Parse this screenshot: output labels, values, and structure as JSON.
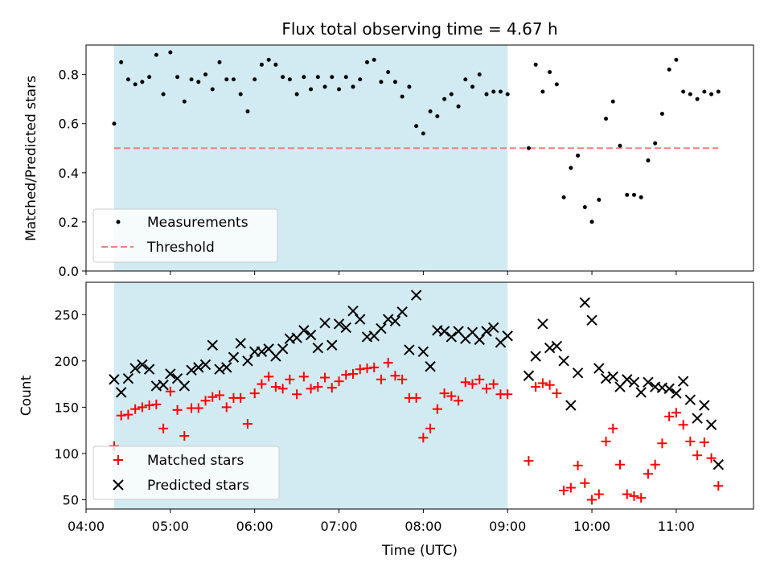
{
  "figure": {
    "title": "Flux total observing time = 4.67 h",
    "background": "#ffffff"
  },
  "chart_data": [
    {
      "type": "scatter",
      "panel": "top",
      "title": "Flux total observing time = 4.67 h",
      "xlabel": "",
      "ylabel": "Matched/Predicted stars",
      "x_unit": "hours UTC",
      "xlim": [
        "04:00",
        "11:55"
      ],
      "ylim": [
        0,
        0.92
      ],
      "yticks": [
        0.0,
        0.2,
        0.4,
        0.6,
        0.8
      ],
      "ytick_labels": [
        "0.0",
        "0.2",
        "0.4",
        "0.6",
        "0.8"
      ],
      "grid": false,
      "legend_position": "bottom-left",
      "shaded_interval": {
        "x": [
          "04:20",
          "09:00"
        ],
        "color": "#add8e6"
      },
      "threshold": {
        "name": "Threshold",
        "value": 0.5,
        "x": [
          "04:20",
          "11:30"
        ],
        "color": "#f08080",
        "style": "dashed"
      },
      "series": [
        {
          "name": "Measurements",
          "marker": "dot",
          "color": "#000000",
          "x": [
            "04:20",
            "04:25",
            "04:30",
            "04:35",
            "04:40",
            "04:45",
            "04:50",
            "04:55",
            "05:00",
            "05:05",
            "05:10",
            "05:15",
            "05:20",
            "05:25",
            "05:30",
            "05:35",
            "05:40",
            "05:45",
            "05:50",
            "05:55",
            "06:00",
            "06:05",
            "06:10",
            "06:15",
            "06:20",
            "06:25",
            "06:30",
            "06:35",
            "06:40",
            "06:45",
            "06:50",
            "06:55",
            "07:00",
            "07:05",
            "07:10",
            "07:15",
            "07:20",
            "07:25",
            "07:30",
            "07:35",
            "07:40",
            "07:45",
            "07:50",
            "07:55",
            "08:00",
            "08:05",
            "08:10",
            "08:15",
            "08:20",
            "08:25",
            "08:30",
            "08:35",
            "08:40",
            "08:45",
            "08:50",
            "08:55",
            "09:00",
            "09:15",
            "09:20",
            "09:25",
            "09:30",
            "09:35",
            "09:40",
            "09:45",
            "09:50",
            "09:55",
            "10:00",
            "10:05",
            "10:10",
            "10:15",
            "10:20",
            "10:25",
            "10:30",
            "10:35",
            "10:40",
            "10:45",
            "10:50",
            "10:55",
            "11:00",
            "11:05",
            "11:10",
            "11:15",
            "11:20",
            "11:25",
            "11:30"
          ],
          "y": [
            0.6,
            0.85,
            0.78,
            0.76,
            0.77,
            0.79,
            0.88,
            0.72,
            0.89,
            0.79,
            0.69,
            0.78,
            0.77,
            0.8,
            0.74,
            0.85,
            0.78,
            0.78,
            0.72,
            0.65,
            0.78,
            0.84,
            0.86,
            0.84,
            0.79,
            0.78,
            0.72,
            0.79,
            0.74,
            0.79,
            0.75,
            0.79,
            0.74,
            0.79,
            0.75,
            0.78,
            0.85,
            0.86,
            0.77,
            0.81,
            0.77,
            0.71,
            0.75,
            0.59,
            0.56,
            0.65,
            0.63,
            0.7,
            0.72,
            0.67,
            0.78,
            0.75,
            0.8,
            0.72,
            0.73,
            0.73,
            0.72,
            0.5,
            0.84,
            0.73,
            0.81,
            0.76,
            0.3,
            0.42,
            0.47,
            0.26,
            0.2,
            0.29,
            0.62,
            0.69,
            0.51,
            0.31,
            0.31,
            0.3,
            0.45,
            0.52,
            0.64,
            0.82,
            0.86,
            0.73,
            0.72,
            0.7,
            0.73,
            0.72,
            0.73
          ]
        }
      ]
    },
    {
      "type": "scatter",
      "panel": "bottom",
      "xlabel": "Time (UTC)",
      "ylabel": "Count",
      "xlim": [
        "04:00",
        "11:55"
      ],
      "xticks": [
        "04:00",
        "05:00",
        "06:00",
        "07:00",
        "08:00",
        "09:00",
        "10:00",
        "11:00"
      ],
      "xtick_labels": [
        "04:00",
        "05:00",
        "06:00",
        "07:00",
        "08:00",
        "09:00",
        "10:00",
        "11:00"
      ],
      "ylim": [
        40,
        285
      ],
      "yticks": [
        50,
        100,
        150,
        200,
        250
      ],
      "ytick_labels": [
        "50",
        "100",
        "150",
        "200",
        "250"
      ],
      "grid": false,
      "legend_position": "bottom-left",
      "shaded_interval": {
        "x": [
          "04:20",
          "09:00"
        ],
        "color": "#add8e6"
      },
      "series": [
        {
          "name": "Matched stars",
          "marker": "plus",
          "color": "#ff0000",
          "x": [
            "04:20",
            "04:25",
            "04:30",
            "04:35",
            "04:40",
            "04:45",
            "04:50",
            "04:55",
            "05:00",
            "05:05",
            "05:10",
            "05:15",
            "05:20",
            "05:25",
            "05:30",
            "05:35",
            "05:40",
            "05:45",
            "05:50",
            "05:55",
            "06:00",
            "06:05",
            "06:10",
            "06:15",
            "06:20",
            "06:25",
            "06:30",
            "06:35",
            "06:40",
            "06:45",
            "06:50",
            "06:55",
            "07:00",
            "07:05",
            "07:10",
            "07:15",
            "07:20",
            "07:25",
            "07:30",
            "07:35",
            "07:40",
            "07:45",
            "07:50",
            "07:55",
            "08:00",
            "08:05",
            "08:10",
            "08:15",
            "08:20",
            "08:25",
            "08:30",
            "08:35",
            "08:40",
            "08:45",
            "08:50",
            "08:55",
            "09:00",
            "09:15",
            "09:20",
            "09:25",
            "09:30",
            "09:35",
            "09:40",
            "09:45",
            "09:50",
            "09:55",
            "10:00",
            "10:05",
            "10:10",
            "10:15",
            "10:20",
            "10:25",
            "10:30",
            "10:35",
            "10:40",
            "10:45",
            "10:50",
            "10:55",
            "11:00",
            "11:05",
            "11:10",
            "11:15",
            "11:20",
            "11:25",
            "11:30"
          ],
          "y": [
            108,
            141,
            142,
            148,
            150,
            152,
            153,
            127,
            167,
            147,
            119,
            149,
            149,
            157,
            161,
            163,
            150,
            160,
            160,
            132,
            165,
            175,
            183,
            172,
            170,
            180,
            164,
            183,
            170,
            172,
            182,
            171,
            178,
            185,
            186,
            191,
            192,
            193,
            180,
            198,
            184,
            180,
            160,
            160,
            117,
            127,
            148,
            165,
            162,
            157,
            177,
            175,
            180,
            170,
            175,
            164,
            164,
            92,
            172,
            176,
            174,
            165,
            60,
            63,
            87,
            68,
            50,
            56,
            113,
            127,
            88,
            56,
            54,
            52,
            78,
            88,
            111,
            140,
            144,
            131,
            113,
            98,
            112,
            95,
            65
          ]
        },
        {
          "name": "Predicted stars",
          "marker": "x",
          "color": "#000000",
          "x": [
            "04:20",
            "04:25",
            "04:30",
            "04:35",
            "04:40",
            "04:45",
            "04:50",
            "04:55",
            "05:00",
            "05:05",
            "05:10",
            "05:15",
            "05:20",
            "05:25",
            "05:30",
            "05:35",
            "05:40",
            "05:45",
            "05:50",
            "05:55",
            "06:00",
            "06:05",
            "06:10",
            "06:15",
            "06:20",
            "06:25",
            "06:30",
            "06:35",
            "06:40",
            "06:45",
            "06:50",
            "06:55",
            "07:00",
            "07:05",
            "07:10",
            "07:15",
            "07:20",
            "07:25",
            "07:30",
            "07:35",
            "07:40",
            "07:45",
            "07:50",
            "07:55",
            "08:00",
            "08:05",
            "08:10",
            "08:15",
            "08:20",
            "08:25",
            "08:30",
            "08:35",
            "08:40",
            "08:45",
            "08:50",
            "08:55",
            "09:00",
            "09:15",
            "09:20",
            "09:25",
            "09:30",
            "09:35",
            "09:40",
            "09:45",
            "09:50",
            "09:55",
            "10:00",
            "10:05",
            "10:10",
            "10:15",
            "10:20",
            "10:25",
            "10:30",
            "10:35",
            "10:40",
            "10:45",
            "10:50",
            "10:55",
            "11:00",
            "11:05",
            "11:10",
            "11:15",
            "11:20",
            "11:25",
            "11:30"
          ],
          "y": [
            180,
            166,
            181,
            192,
            196,
            191,
            173,
            174,
            186,
            181,
            173,
            190,
            193,
            196,
            217,
            191,
            193,
            204,
            219,
            200,
            210,
            210,
            213,
            205,
            213,
            224,
            225,
            233,
            228,
            214,
            241,
            217,
            240,
            236,
            254,
            245,
            226,
            227,
            235,
            245,
            243,
            253,
            212,
            271,
            210,
            194,
            233,
            232,
            226,
            232,
            224,
            231,
            223,
            232,
            236,
            220,
            227,
            184,
            205,
            240,
            214,
            216,
            200,
            152,
            187,
            263,
            244,
            192,
            181,
            183,
            172,
            180,
            177,
            166,
            177,
            172,
            171,
            170,
            165,
            178,
            158,
            138,
            152,
            131,
            88
          ]
        }
      ]
    }
  ]
}
